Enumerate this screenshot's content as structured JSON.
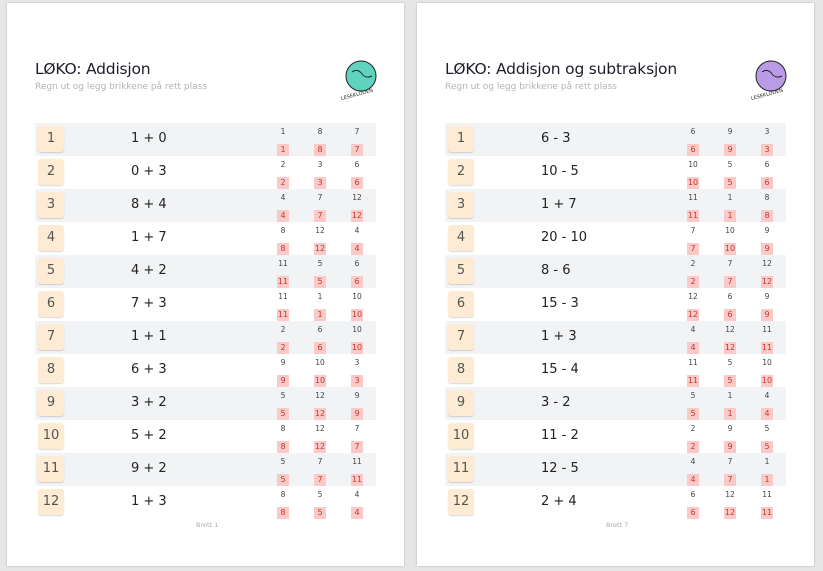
{
  "pages": [
    {
      "title": "LØKO: Addisjon",
      "subtitle": "Regn ut og legg brikkene på rett plass",
      "logo_text": "LESEKLODEN",
      "logo_color": "#5fd3bd",
      "footer": "Brett 1",
      "rows": [
        {
          "n": "1",
          "expr": "1 + 0",
          "answers": [
            "1",
            "8",
            "7"
          ]
        },
        {
          "n": "2",
          "expr": "0 + 3",
          "answers": [
            "2",
            "3",
            "6"
          ]
        },
        {
          "n": "3",
          "expr": "8 + 4",
          "answers": [
            "4",
            "7",
            "12"
          ]
        },
        {
          "n": "4",
          "expr": "1 + 7",
          "answers": [
            "8",
            "12",
            "4"
          ]
        },
        {
          "n": "5",
          "expr": "4 + 2",
          "answers": [
            "11",
            "5",
            "6"
          ]
        },
        {
          "n": "6",
          "expr": "7 + 3",
          "answers": [
            "11",
            "1",
            "10"
          ]
        },
        {
          "n": "7",
          "expr": "1 + 1",
          "answers": [
            "2",
            "6",
            "10"
          ]
        },
        {
          "n": "8",
          "expr": "6 + 3",
          "answers": [
            "9",
            "10",
            "3"
          ]
        },
        {
          "n": "9",
          "expr": "3 + 2",
          "answers": [
            "5",
            "12",
            "9"
          ]
        },
        {
          "n": "10",
          "expr": "5 + 2",
          "answers": [
            "8",
            "12",
            "7"
          ]
        },
        {
          "n": "11",
          "expr": "9 + 2",
          "answers": [
            "5",
            "7",
            "11"
          ]
        },
        {
          "n": "12",
          "expr": "1 + 3",
          "answers": [
            "8",
            "5",
            "4"
          ]
        }
      ]
    },
    {
      "title": "LØKO: Addisjon og subtraksjon",
      "subtitle": "Regn ut og legg brikkene på rett plass",
      "logo_text": "LESEKLODEN",
      "logo_color": "#b99be6",
      "footer": "Brett 7",
      "rows": [
        {
          "n": "1",
          "expr": "6 - 3",
          "answers": [
            "6",
            "9",
            "3"
          ]
        },
        {
          "n": "2",
          "expr": "10 - 5",
          "answers": [
            "10",
            "5",
            "6"
          ]
        },
        {
          "n": "3",
          "expr": "1 + 7",
          "answers": [
            "11",
            "1",
            "8"
          ]
        },
        {
          "n": "4",
          "expr": "20 - 10",
          "answers": [
            "7",
            "10",
            "9"
          ]
        },
        {
          "n": "5",
          "expr": "8 - 6",
          "answers": [
            "2",
            "7",
            "12"
          ]
        },
        {
          "n": "6",
          "expr": "15 - 3",
          "answers": [
            "12",
            "6",
            "9"
          ]
        },
        {
          "n": "7",
          "expr": "1 + 3",
          "answers": [
            "4",
            "12",
            "11"
          ]
        },
        {
          "n": "8",
          "expr": "15 - 4",
          "answers": [
            "11",
            "5",
            "10"
          ]
        },
        {
          "n": "9",
          "expr": "3 - 2",
          "answers": [
            "5",
            "1",
            "4"
          ]
        },
        {
          "n": "10",
          "expr": "11 - 2",
          "answers": [
            "2",
            "9",
            "5"
          ]
        },
        {
          "n": "11",
          "expr": "12 - 5",
          "answers": [
            "4",
            "7",
            "1"
          ]
        },
        {
          "n": "12",
          "expr": "2 + 4",
          "answers": [
            "6",
            "12",
            "11"
          ]
        }
      ]
    }
  ]
}
